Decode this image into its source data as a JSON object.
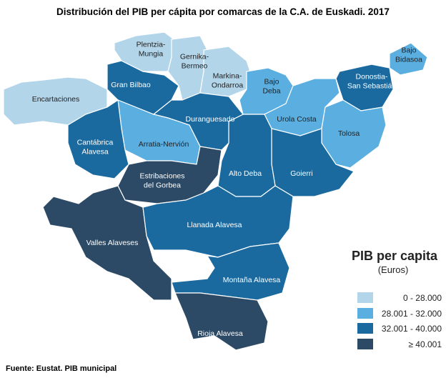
{
  "title": "Distribución del PIB per cápita por comarcas de la C.A. de Euskadi. 2017",
  "regions": [
    {
      "label": [
        "Encartaciones"
      ],
      "color": "#b3d5ea"
    },
    {
      "label": [
        "Gran Bilbao"
      ],
      "color": "#1a6aa0"
    },
    {
      "label": [
        "Plentzia-",
        "Mungia"
      ],
      "color": "#b3d5ea"
    },
    {
      "label": [
        "Gernika-",
        "Bermeo"
      ],
      "color": "#b3d5ea"
    },
    {
      "label": [
        "Markina-",
        "Ondarroa"
      ],
      "color": "#b3d5ea"
    },
    {
      "label": [
        "Bajo",
        "Deba"
      ],
      "color": "#5aaee0"
    },
    {
      "label": [
        "Urola Costa"
      ],
      "color": "#5aaee0"
    },
    {
      "label": [
        "Donostia-",
        "San Sebastián"
      ],
      "color": "#1a6aa0"
    },
    {
      "label": [
        "Bajo",
        "Bidasoa"
      ],
      "color": "#5aaee0"
    },
    {
      "label": [
        "Tolosa"
      ],
      "color": "#5aaee0"
    },
    {
      "label": [
        "Goierri"
      ],
      "color": "#1a6aa0"
    },
    {
      "label": [
        "Alto Deba"
      ],
      "color": "#1a6aa0"
    },
    {
      "label": [
        "Duranguesado"
      ],
      "color": "#1a6aa0"
    },
    {
      "label": [
        "Arratia-Nervión"
      ],
      "color": "#5aaee0"
    },
    {
      "label": [
        "Cantábrica",
        "Alavesa"
      ],
      "color": "#1a6aa0"
    },
    {
      "label": [
        "Estribaciones",
        "del Gorbea"
      ],
      "color": "#2c4a66"
    },
    {
      "label": [
        "Valles Alaveses"
      ],
      "color": "#2c4a66"
    },
    {
      "label": [
        "Llanada Alavesa"
      ],
      "color": "#1a6aa0"
    },
    {
      "label": [
        "Montaña Alavesa"
      ],
      "color": "#1a6aa0"
    },
    {
      "label": [
        "Rioja Alavesa"
      ],
      "color": "#2c4a66"
    }
  ],
  "legend": {
    "title": "PIB per capita",
    "subtitle": "(Euros)",
    "items": [
      {
        "label": "0  - 28.000",
        "color": "#b3d5ea"
      },
      {
        "label": "28.001 - 32.000",
        "color": "#5aaee0"
      },
      {
        "label": "32.001 - 40.000",
        "color": "#1a6aa0"
      },
      {
        "label": "≥ 40.001",
        "color": "#2c4a66"
      }
    ]
  },
  "source": "Fuente: Eustat. PIB municipal"
}
